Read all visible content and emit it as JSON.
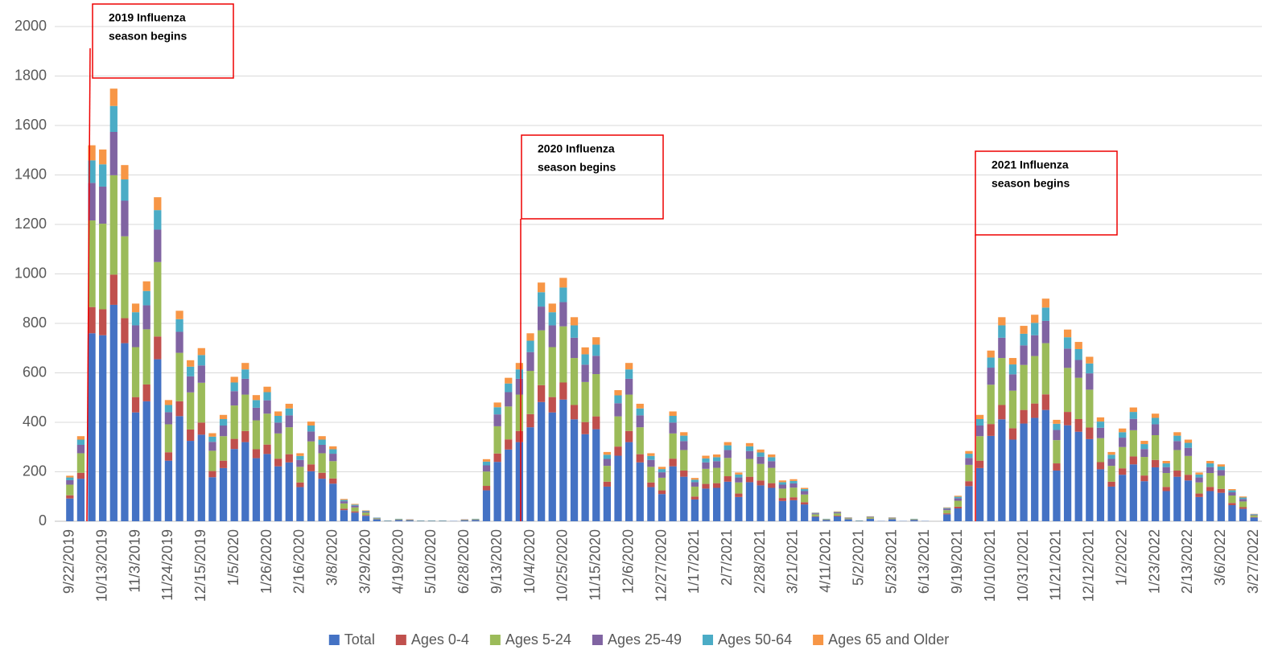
{
  "chart_data": {
    "type": "stacked_bar",
    "categories": [
      "9/22/2019",
      null,
      null,
      "10/13/2019",
      null,
      null,
      "11/3/2019",
      null,
      null,
      "11/24/2019",
      null,
      null,
      "12/15/2019",
      null,
      null,
      "1/5/2020",
      null,
      null,
      "1/26/2020",
      null,
      null,
      "2/16/2020",
      null,
      null,
      "3/8/2020",
      null,
      null,
      "3/29/2020",
      null,
      null,
      "4/19/2020",
      null,
      null,
      "5/10/2020",
      null,
      null,
      "6/28/2020",
      null,
      null,
      "9/13/2020",
      null,
      null,
      "10/4/2020",
      null,
      null,
      "10/25/2020",
      null,
      null,
      "11/15/2020",
      null,
      null,
      "12/6/2020",
      null,
      null,
      "12/27/2020",
      null,
      null,
      "1/17/2021",
      null,
      null,
      "2/7/2021",
      null,
      null,
      "2/28/2021",
      null,
      null,
      "3/21/2021",
      null,
      null,
      "4/11/2021",
      null,
      null,
      "5/2/2021",
      null,
      null,
      "5/23/2021",
      null,
      null,
      "6/13/2021",
      null,
      null,
      "9/19/2021",
      null,
      null,
      "10/10/2021",
      null,
      null,
      "10/31/2021",
      null,
      null,
      "11/21/2021",
      null,
      null,
      "12/12/2021",
      null,
      null,
      "1/2/2022",
      null,
      null,
      "1/23/2022",
      null,
      null,
      "2/13/2022",
      null,
      null,
      "3/6/2022",
      null,
      null,
      "3/27/2022"
    ],
    "series": [
      {
        "name": "Total",
        "color": "#4472c4",
        "values": [
          92,
          172,
          760,
          752,
          875,
          720,
          440,
          485,
          655,
          245,
          425,
          325,
          350,
          178,
          215,
          292,
          320,
          255,
          272,
          222,
          238,
          138,
          202,
          172,
          152,
          45,
          35,
          22,
          8,
          2,
          5,
          4,
          2,
          2,
          2,
          1,
          4,
          5,
          125,
          240,
          290,
          320,
          380,
          482,
          440,
          492,
          412,
          352,
          372,
          140,
          265,
          320,
          238,
          138,
          110,
          222,
          180,
          88,
          132,
          135,
          160,
          98,
          158,
          145,
          135,
          82,
          85,
          68,
          18,
          5,
          20,
          8,
          2,
          10,
          1,
          8,
          1,
          5,
          1,
          0,
          28,
          52,
          142,
          215,
          345,
          412,
          330,
          395,
          418,
          450,
          205,
          388,
          362,
          332,
          210,
          140,
          188,
          230,
          162,
          218,
          122,
          180,
          165,
          98,
          122,
          115,
          65,
          50,
          15
        ]
      },
      {
        "name": "Ages 0-4",
        "color": "#c0504d",
        "values": [
          13,
          24,
          106,
          105,
          122,
          101,
          62,
          68,
          92,
          34,
          60,
          46,
          49,
          25,
          30,
          41,
          45,
          36,
          38,
          31,
          33,
          19,
          28,
          24,
          21,
          6,
          5,
          3,
          1,
          0,
          1,
          1,
          0,
          0,
          0,
          0,
          1,
          1,
          18,
          34,
          41,
          45,
          53,
          68,
          62,
          69,
          58,
          49,
          52,
          20,
          37,
          45,
          33,
          19,
          15,
          31,
          25,
          12,
          19,
          19,
          22,
          14,
          22,
          20,
          19,
          12,
          12,
          9,
          2,
          1,
          3,
          1,
          0,
          1,
          0,
          1,
          0,
          1,
          0,
          0,
          4,
          7,
          20,
          30,
          48,
          58,
          46,
          55,
          58,
          63,
          29,
          54,
          51,
          47,
          29,
          20,
          26,
          32,
          23,
          30,
          17,
          25,
          23,
          14,
          17,
          16,
          9,
          7,
          2
        ]
      },
      {
        "name": "Ages 5-24",
        "color": "#9bbb59",
        "values": [
          43,
          79,
          350,
          346,
          402,
          331,
          202,
          223,
          301,
          113,
          196,
          150,
          161,
          82,
          99,
          135,
          147,
          117,
          125,
          102,
          109,
          63,
          93,
          79,
          70,
          21,
          16,
          10,
          3,
          1,
          2,
          2,
          1,
          1,
          1,
          0,
          2,
          2,
          58,
          110,
          133,
          147,
          175,
          222,
          202,
          227,
          190,
          162,
          171,
          64,
          122,
          147,
          109,
          63,
          51,
          102,
          83,
          40,
          61,
          62,
          74,
          45,
          72,
          67,
          62,
          38,
          39,
          31,
          8,
          2,
          9,
          3,
          1,
          5,
          0,
          3,
          0,
          2,
          0,
          0,
          13,
          24,
          66,
          99,
          159,
          190,
          152,
          182,
          192,
          207,
          94,
          178,
          167,
          153,
          97,
          64,
          86,
          106,
          75,
          100,
          56,
          83,
          76,
          45,
          56,
          53,
          30,
          23,
          7
        ]
      },
      {
        "name": "Ages 25-49",
        "color": "#8064a2",
        "values": [
          18,
          34,
          152,
          150,
          175,
          144,
          88,
          97,
          131,
          49,
          85,
          65,
          70,
          36,
          43,
          58,
          64,
          51,
          54,
          44,
          48,
          28,
          40,
          34,
          30,
          9,
          7,
          4,
          2,
          0,
          1,
          1,
          0,
          0,
          0,
          0,
          1,
          1,
          25,
          48,
          58,
          64,
          76,
          96,
          88,
          98,
          82,
          70,
          74,
          28,
          53,
          64,
          48,
          28,
          22,
          44,
          36,
          18,
          26,
          27,
          32,
          20,
          32,
          29,
          27,
          16,
          17,
          14,
          4,
          1,
          4,
          2,
          0,
          2,
          0,
          2,
          0,
          1,
          0,
          0,
          6,
          10,
          28,
          43,
          69,
          82,
          66,
          79,
          84,
          90,
          41,
          78,
          72,
          66,
          42,
          28,
          38,
          46,
          32,
          44,
          24,
          36,
          33,
          20,
          24,
          23,
          13,
          10,
          3
        ]
      },
      {
        "name": "Ages 50-64",
        "color": "#4bacc6",
        "values": [
          11,
          21,
          91,
          90,
          105,
          86,
          53,
          58,
          79,
          29,
          51,
          39,
          42,
          21,
          26,
          35,
          38,
          31,
          33,
          27,
          28,
          16,
          24,
          21,
          18,
          5,
          4,
          3,
          1,
          0,
          1,
          0,
          0,
          0,
          0,
          0,
          0,
          1,
          15,
          29,
          35,
          38,
          46,
          58,
          53,
          59,
          50,
          42,
          45,
          17,
          32,
          38,
          28,
          16,
          13,
          27,
          22,
          10,
          16,
          16,
          19,
          12,
          19,
          17,
          16,
          10,
          10,
          8,
          2,
          1,
          2,
          1,
          0,
          1,
          0,
          1,
          0,
          1,
          0,
          0,
          3,
          6,
          17,
          26,
          41,
          50,
          40,
          47,
          50,
          54,
          25,
          46,
          44,
          40,
          25,
          17,
          22,
          28,
          20,
          26,
          15,
          22,
          20,
          12,
          15,
          14,
          8,
          6,
          2
        ]
      },
      {
        "name": "Ages 65 and Older",
        "color": "#f79646",
        "values": [
          7,
          14,
          61,
          60,
          70,
          58,
          35,
          39,
          52,
          20,
          34,
          26,
          28,
          14,
          17,
          23,
          26,
          20,
          22,
          18,
          19,
          11,
          16,
          14,
          12,
          4,
          3,
          2,
          0,
          0,
          0,
          0,
          0,
          0,
          0,
          0,
          0,
          0,
          10,
          19,
          23,
          26,
          30,
          39,
          35,
          39,
          33,
          28,
          30,
          11,
          21,
          26,
          19,
          11,
          9,
          18,
          14,
          7,
          11,
          11,
          13,
          8,
          13,
          12,
          11,
          7,
          7,
          5,
          1,
          0,
          2,
          1,
          0,
          1,
          0,
          1,
          0,
          0,
          0,
          0,
          2,
          4,
          11,
          17,
          28,
          33,
          26,
          32,
          33,
          36,
          16,
          31,
          29,
          27,
          17,
          11,
          15,
          18,
          13,
          17,
          10,
          14,
          13,
          8,
          10,
          9,
          5,
          4,
          1
        ]
      }
    ],
    "ylim": [
      0,
      2000
    ],
    "yticks": [
      0,
      200,
      400,
      600,
      800,
      1000,
      1200,
      1400,
      1600,
      1800,
      2000
    ],
    "grid": true,
    "annotations": [
      {
        "lines": [
          "2019 Influenza",
          "season begins"
        ]
      },
      {
        "lines": [
          "2020 Influenza",
          "season begins"
        ]
      },
      {
        "lines": [
          "2021 Influenza",
          "season begins"
        ]
      }
    ]
  }
}
